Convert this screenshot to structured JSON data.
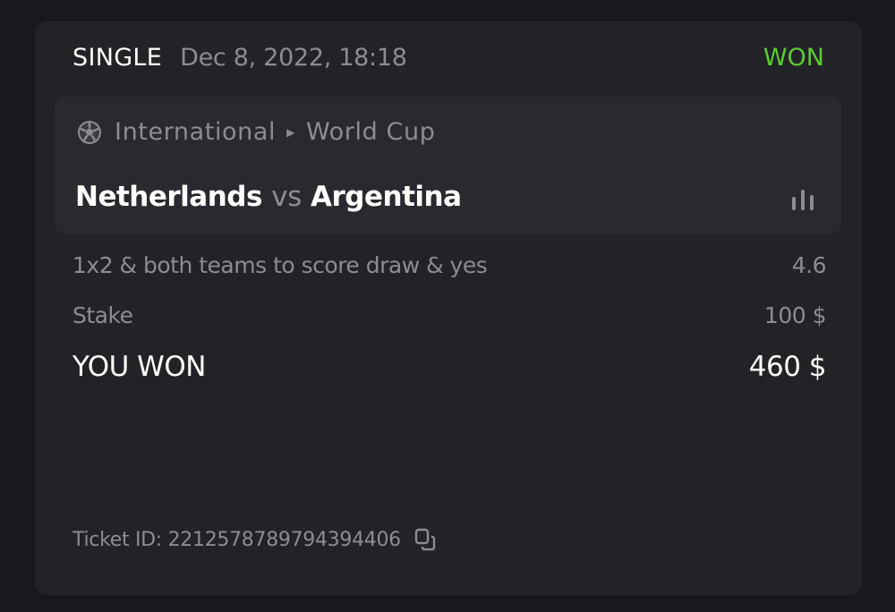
{
  "bet": {
    "type": "SINGLE",
    "date": "Dec 8, 2022, 18:18",
    "status": "WON",
    "status_color": "#5ccb33"
  },
  "event": {
    "sport_icon": "soccer-ball-icon",
    "category": "International",
    "league": "World Cup",
    "home": "Netherlands",
    "vs": "vs",
    "away": "Argentina",
    "stats_icon": "bar-chart-icon"
  },
  "selection": {
    "market": "1x2 & both teams to score draw & yes",
    "odds": "4.6"
  },
  "stake": {
    "label": "Stake",
    "value": "100 $"
  },
  "winnings": {
    "label": "YOU WON",
    "value": "460 $"
  },
  "ticket": {
    "label": "Ticket ID: 2212578789794394406",
    "copy_icon": "copy-icon"
  }
}
